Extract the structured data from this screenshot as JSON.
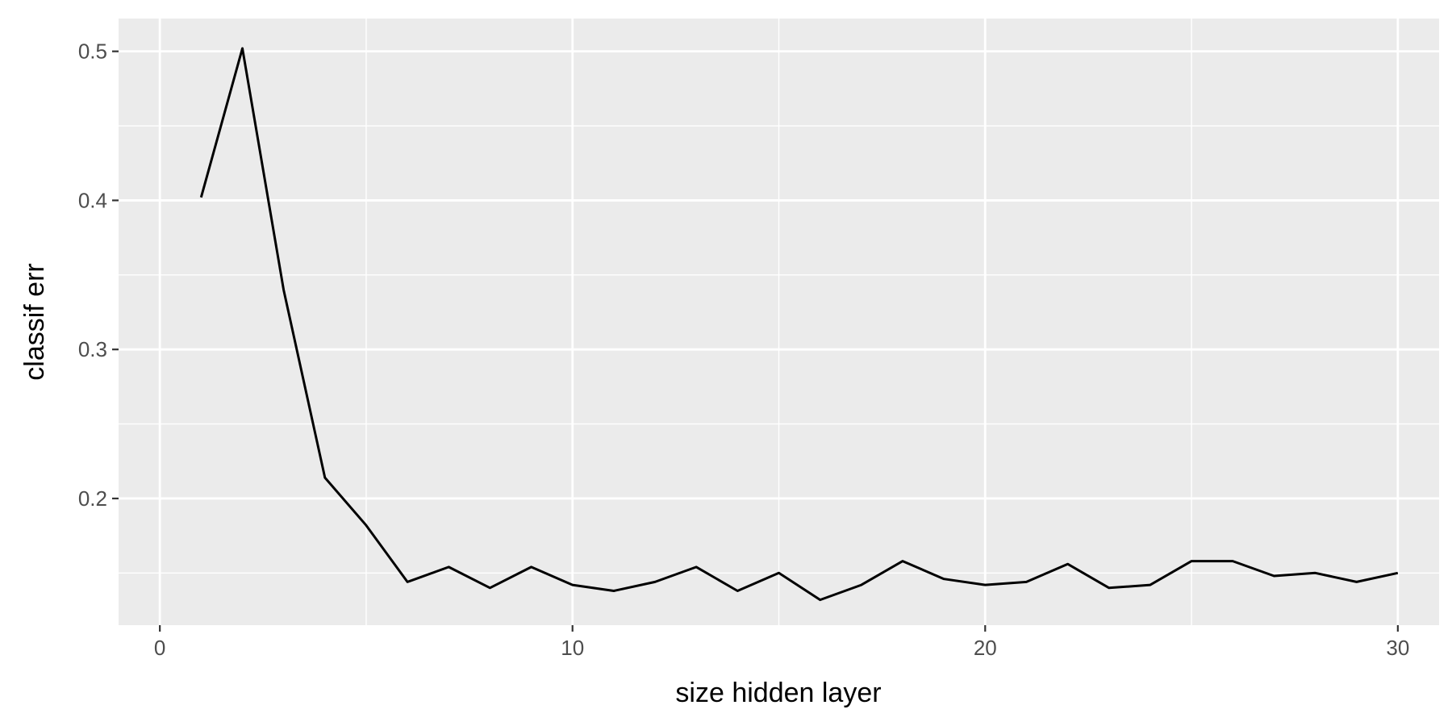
{
  "chart_data": {
    "type": "line",
    "title": "",
    "xlabel": "size hidden layer",
    "ylabel": "classif err",
    "xlim": [
      -1,
      31
    ],
    "ylim": [
      0.115,
      0.522
    ],
    "x_ticks": [
      0,
      10,
      20,
      30
    ],
    "x_tick_labels": [
      "0",
      "10",
      "20",
      "30"
    ],
    "x_minor_ticks": [
      5,
      15,
      25
    ],
    "y_ticks": [
      0.2,
      0.3,
      0.4,
      0.5
    ],
    "y_tick_labels": [
      "0.2",
      "0.3",
      "0.4",
      "0.5"
    ],
    "y_minor_ticks": [
      0.15,
      0.25,
      0.35,
      0.45
    ],
    "grid": true,
    "series": [
      {
        "line_color": "#000000",
        "x": [
          1,
          2,
          3,
          4,
          5,
          6,
          7,
          8,
          9,
          10,
          11,
          12,
          13,
          14,
          15,
          16,
          17,
          18,
          19,
          20,
          21,
          22,
          23,
          24,
          25,
          26,
          27,
          28,
          29,
          30
        ],
        "y": [
          0.402,
          0.502,
          0.34,
          0.214,
          0.182,
          0.144,
          0.154,
          0.14,
          0.154,
          0.142,
          0.138,
          0.144,
          0.154,
          0.138,
          0.15,
          0.132,
          0.142,
          0.158,
          0.146,
          0.142,
          0.144,
          0.156,
          0.14,
          0.142,
          0.158,
          0.158,
          0.148,
          0.15,
          0.144,
          0.15
        ]
      }
    ]
  },
  "colors": {
    "panel_background": "#ebebeb",
    "grid_major": "#ffffff",
    "tick_mark": "#333333",
    "tick_text": "#4d4d4d"
  }
}
